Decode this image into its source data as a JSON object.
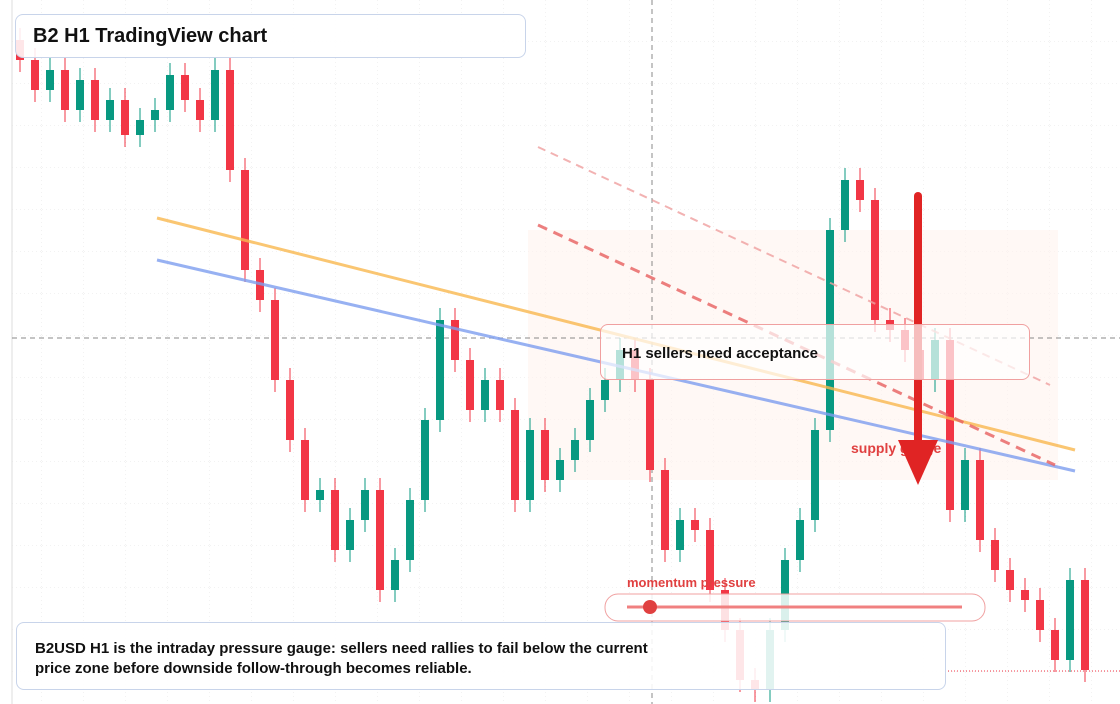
{
  "chart_data": {
    "type": "candlestick",
    "title": "B2 H1 TradingView chart",
    "annotation": "H1 sellers need acceptance",
    "zone_label": "supply gauge",
    "gauge_label": "momentum pressure",
    "caption": "B2USD H1 is the intraday pressure gauge: sellers need rallies to fail below the current price zone before downside follow-through becomes reliable.",
    "up_color": "#089981",
    "down_color": "#f23645",
    "ylim": [
      0,
      704
    ],
    "open": [
      664,
      644,
      614,
      634,
      594,
      624,
      584,
      604,
      569,
      584,
      594,
      629,
      604,
      584,
      634,
      534,
      434,
      404,
      324,
      264,
      204,
      214,
      154,
      184,
      214,
      114,
      144,
      204,
      284,
      384,
      344,
      294,
      324,
      294,
      204,
      274,
      224,
      244,
      264,
      304,
      324,
      354,
      324,
      234,
      154,
      184,
      174,
      114,
      74,
      24,
      14,
      74,
      144,
      184,
      274,
      474,
      524,
      504,
      384,
      374,
      354,
      324,
      364,
      194,
      244,
      164,
      134,
      114,
      104,
      74,
      44,
      124
    ],
    "high": [
      676,
      656,
      646,
      646,
      636,
      636,
      616,
      616,
      596,
      606,
      641,
      641,
      616,
      646,
      646,
      546,
      446,
      416,
      336,
      276,
      226,
      226,
      196,
      226,
      226,
      156,
      216,
      296,
      396,
      396,
      356,
      336,
      336,
      306,
      286,
      286,
      256,
      276,
      316,
      336,
      366,
      366,
      336,
      246,
      196,
      196,
      186,
      126,
      86,
      36,
      86,
      156,
      196,
      286,
      486,
      536,
      536,
      516,
      396,
      386,
      366,
      376,
      376,
      256,
      256,
      176,
      146,
      126,
      116,
      86,
      136,
      136
    ],
    "low": [
      632,
      602,
      602,
      582,
      582,
      572,
      572,
      557,
      557,
      572,
      582,
      592,
      572,
      572,
      522,
      422,
      392,
      312,
      252,
      192,
      192,
      142,
      142,
      172,
      102,
      102,
      132,
      192,
      272,
      332,
      282,
      282,
      282,
      192,
      192,
      212,
      212,
      232,
      252,
      292,
      312,
      312,
      222,
      142,
      142,
      162,
      102,
      62,
      12,
      2,
      2,
      62,
      132,
      172,
      262,
      462,
      492,
      372,
      362,
      342,
      312,
      312,
      182,
      182,
      152,
      122,
      102,
      92,
      62,
      32,
      32,
      22
    ],
    "close": [
      644,
      614,
      634,
      594,
      624,
      584,
      604,
      569,
      584,
      594,
      629,
      604,
      584,
      634,
      534,
      434,
      404,
      324,
      264,
      204,
      214,
      154,
      184,
      214,
      114,
      144,
      204,
      284,
      384,
      344,
      294,
      324,
      294,
      204,
      274,
      224,
      244,
      264,
      304,
      324,
      354,
      324,
      234,
      154,
      184,
      174,
      114,
      74,
      24,
      14,
      74,
      144,
      184,
      274,
      474,
      524,
      504,
      384,
      374,
      354,
      324,
      364,
      194,
      244,
      164,
      134,
      114,
      104,
      74,
      44,
      124,
      34
    ]
  }
}
